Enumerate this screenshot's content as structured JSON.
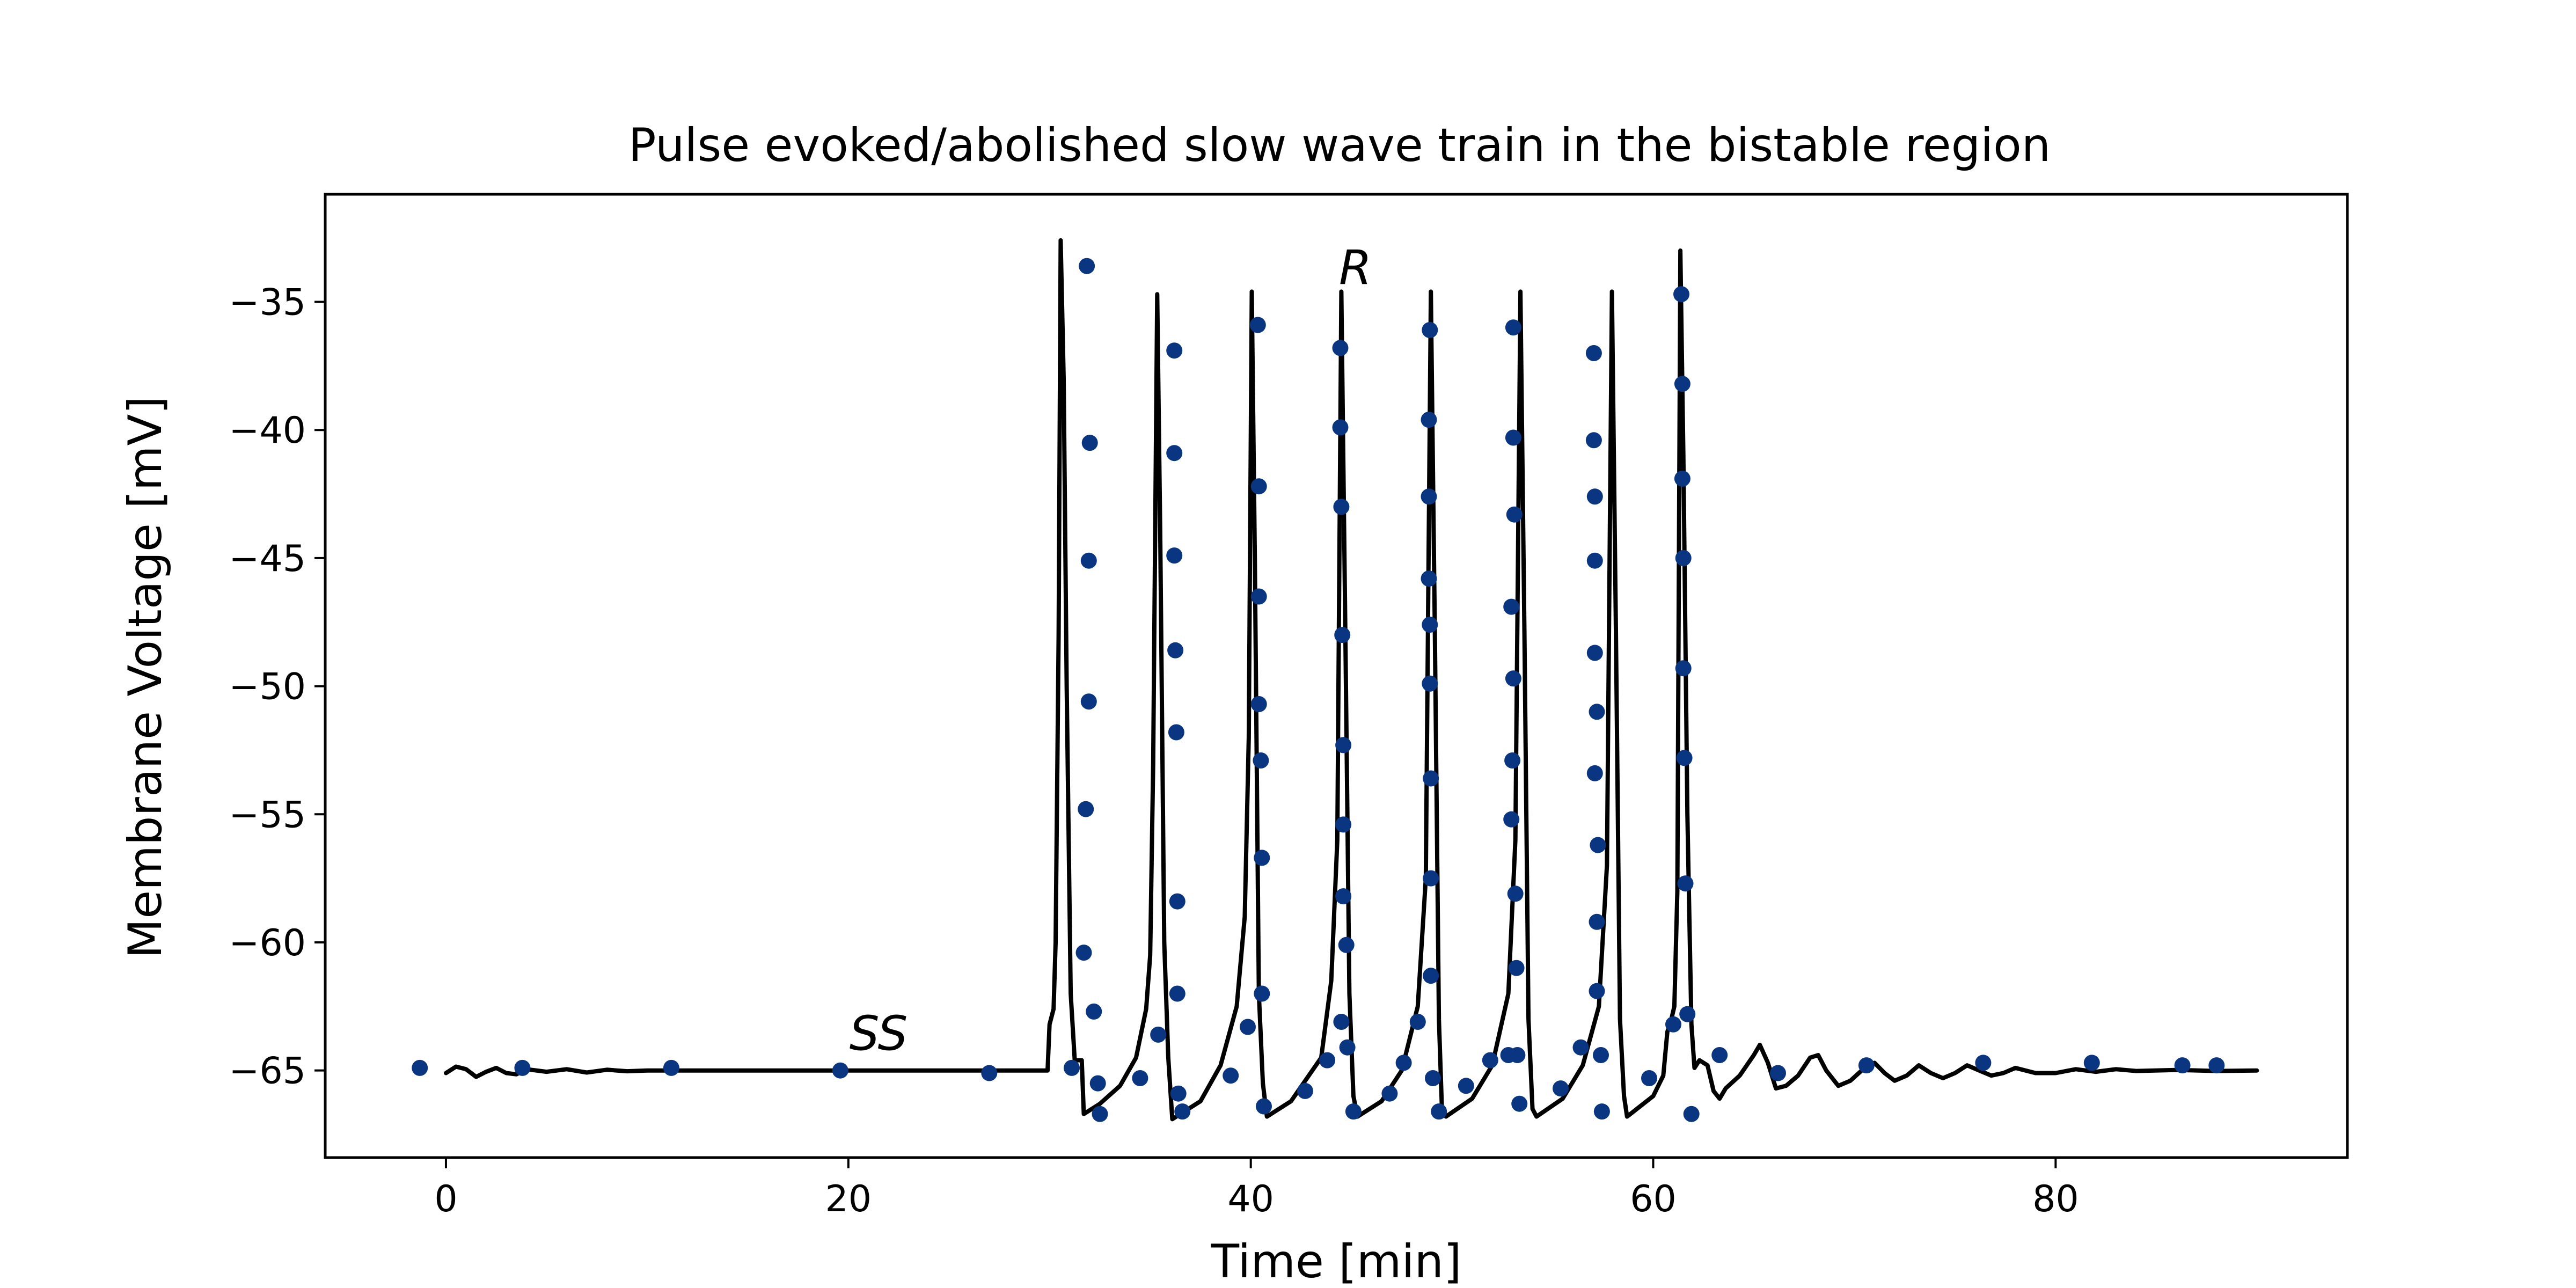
{
  "chart_data": {
    "type": "line",
    "title": "Pulse evoked/abolished slow wave train in the bistable region",
    "xlabel": "Time [min]",
    "ylabel": "Membrane Voltage [mV]",
    "xlim": [
      -6,
      94.5
    ],
    "ylim": [
      -68.4,
      -30.8
    ],
    "xticks": [
      0,
      20,
      40,
      60,
      80
    ],
    "yticks": [
      -35,
      -40,
      -45,
      -50,
      -55,
      -60,
      -65
    ],
    "xtick_labels": [
      "0",
      "20",
      "40",
      "60",
      "80"
    ],
    "ytick_labels": [
      "−35",
      "−40",
      "−45",
      "−50",
      "−55",
      "−60",
      "−65"
    ],
    "grid": false,
    "legend": "none",
    "annotations": [
      {
        "text": "SS",
        "x": 21.5,
        "y": -64.2
      },
      {
        "text": "R",
        "x": 45.2,
        "y": -34.3
      }
    ],
    "series": [
      {
        "kind": "line",
        "color": "#000000",
        "points": [
          [
            0,
            -65.1
          ],
          [
            0.5,
            -64.85
          ],
          [
            1.0,
            -64.95
          ],
          [
            1.5,
            -65.25
          ],
          [
            2.0,
            -65.05
          ],
          [
            2.5,
            -64.9
          ],
          [
            3.0,
            -65.1
          ],
          [
            3.5,
            -65.15
          ],
          [
            4.0,
            -64.95
          ],
          [
            5.0,
            -65.05
          ],
          [
            6.0,
            -64.95
          ],
          [
            7.0,
            -65.08
          ],
          [
            8.0,
            -64.97
          ],
          [
            9.0,
            -65.03
          ],
          [
            10.0,
            -65.0
          ],
          [
            12.0,
            -65.0
          ],
          [
            14.0,
            -65.0
          ],
          [
            29.9,
            -65.0
          ],
          [
            30.0,
            -63.2
          ],
          [
            30.2,
            -62.6
          ],
          [
            30.3,
            -60.0
          ],
          [
            30.45,
            -48.0
          ],
          [
            30.55,
            -32.6
          ],
          [
            30.7,
            -38.0
          ],
          [
            30.85,
            -50.0
          ],
          [
            31.05,
            -62.0
          ],
          [
            31.25,
            -64.6
          ],
          [
            31.6,
            -64.6
          ],
          [
            31.7,
            -66.7
          ],
          [
            32.5,
            -66.3
          ],
          [
            33.5,
            -65.6
          ],
          [
            34.3,
            -64.5
          ],
          [
            34.8,
            -62.6
          ],
          [
            35.0,
            -60.5
          ],
          [
            35.15,
            -53.0
          ],
          [
            35.35,
            -34.7
          ],
          [
            35.5,
            -44.0
          ],
          [
            35.7,
            -60.0
          ],
          [
            35.9,
            -64.5
          ],
          [
            36.1,
            -66.9
          ],
          [
            37.5,
            -66.2
          ],
          [
            38.5,
            -64.8
          ],
          [
            39.3,
            -62.5
          ],
          [
            39.7,
            -59.0
          ],
          [
            39.9,
            -52.0
          ],
          [
            40.05,
            -34.6
          ],
          [
            40.2,
            -45.0
          ],
          [
            40.4,
            -62.0
          ],
          [
            40.6,
            -65.5
          ],
          [
            40.8,
            -66.8
          ],
          [
            42.0,
            -66.2
          ],
          [
            43.5,
            -64.5
          ],
          [
            44.0,
            -61.5
          ],
          [
            44.3,
            -56.0
          ],
          [
            44.5,
            -34.6
          ],
          [
            44.7,
            -48.0
          ],
          [
            44.9,
            -62.0
          ],
          [
            45.1,
            -66.0
          ],
          [
            45.3,
            -66.8
          ],
          [
            46.5,
            -66.2
          ],
          [
            47.5,
            -65.0
          ],
          [
            48.3,
            -62.5
          ],
          [
            48.7,
            -57.5
          ],
          [
            48.95,
            -34.6
          ],
          [
            49.15,
            -48.0
          ],
          [
            49.35,
            -63.0
          ],
          [
            49.5,
            -66.5
          ],
          [
            49.7,
            -66.8
          ],
          [
            51.0,
            -66.1
          ],
          [
            52.0,
            -64.8
          ],
          [
            52.8,
            -62.0
          ],
          [
            53.15,
            -56.0
          ],
          [
            53.4,
            -34.6
          ],
          [
            53.6,
            -48.0
          ],
          [
            53.8,
            -63.0
          ],
          [
            54.0,
            -66.5
          ],
          [
            54.2,
            -66.8
          ],
          [
            55.5,
            -66.1
          ],
          [
            56.5,
            -64.8
          ],
          [
            57.3,
            -62.5
          ],
          [
            57.7,
            -57.0
          ],
          [
            57.95,
            -34.6
          ],
          [
            58.15,
            -48.0
          ],
          [
            58.35,
            -63.0
          ],
          [
            58.55,
            -66.0
          ],
          [
            58.7,
            -66.8
          ],
          [
            60.0,
            -66.0
          ],
          [
            60.5,
            -65.2
          ],
          [
            60.7,
            -63.5
          ],
          [
            60.9,
            -63.0
          ],
          [
            61.05,
            -62.5
          ],
          [
            61.2,
            -58.0
          ],
          [
            61.35,
            -33.0
          ],
          [
            61.5,
            -41.0
          ],
          [
            61.7,
            -55.0
          ],
          [
            61.9,
            -63.2
          ],
          [
            62.05,
            -64.9
          ],
          [
            62.3,
            -64.6
          ],
          [
            62.7,
            -64.8
          ],
          [
            63.0,
            -65.8
          ],
          [
            63.3,
            -66.1
          ],
          [
            63.6,
            -65.7
          ],
          [
            64.3,
            -65.2
          ],
          [
            65.0,
            -64.4
          ],
          [
            65.3,
            -64.0
          ],
          [
            65.7,
            -64.7
          ],
          [
            66.1,
            -65.7
          ],
          [
            66.6,
            -65.6
          ],
          [
            67.2,
            -65.2
          ],
          [
            67.8,
            -64.5
          ],
          [
            68.2,
            -64.4
          ],
          [
            68.6,
            -65.0
          ],
          [
            69.2,
            -65.6
          ],
          [
            69.8,
            -65.4
          ],
          [
            70.5,
            -64.9
          ],
          [
            71.0,
            -64.7
          ],
          [
            71.5,
            -65.1
          ],
          [
            72.0,
            -65.4
          ],
          [
            72.6,
            -65.2
          ],
          [
            73.2,
            -64.8
          ],
          [
            73.8,
            -65.1
          ],
          [
            74.4,
            -65.3
          ],
          [
            75.0,
            -65.1
          ],
          [
            75.6,
            -64.8
          ],
          [
            76.2,
            -65.0
          ],
          [
            76.8,
            -65.2
          ],
          [
            77.4,
            -65.1
          ],
          [
            78.0,
            -64.9
          ],
          [
            79.0,
            -65.1
          ],
          [
            80.0,
            -65.1
          ],
          [
            81.0,
            -64.95
          ],
          [
            82.0,
            -65.05
          ],
          [
            83.0,
            -64.95
          ],
          [
            84.0,
            -65.02
          ],
          [
            86.0,
            -64.98
          ],
          [
            88.0,
            -65.02
          ],
          [
            90.0,
            -65.0
          ]
        ]
      },
      {
        "kind": "scatter",
        "color": "#0a3580",
        "points": [
          [
            -1.3,
            -64.9
          ],
          [
            3.8,
            -64.9
          ],
          [
            11.2,
            -64.9
          ],
          [
            19.6,
            -65.0
          ],
          [
            27.0,
            -65.1
          ],
          [
            31.1,
            -64.9
          ],
          [
            31.7,
            -60.4
          ],
          [
            31.8,
            -54.8
          ],
          [
            31.95,
            -45.1
          ],
          [
            31.95,
            -50.6
          ],
          [
            32.0,
            -40.5
          ],
          [
            32.2,
            -62.7
          ],
          [
            32.4,
            -65.5
          ],
          [
            32.5,
            -66.7
          ],
          [
            31.85,
            -33.6
          ],
          [
            34.5,
            -65.3
          ],
          [
            35.4,
            -63.6
          ],
          [
            36.2,
            -36.9
          ],
          [
            36.2,
            -40.9
          ],
          [
            36.2,
            -44.9
          ],
          [
            36.25,
            -48.6
          ],
          [
            36.3,
            -51.8
          ],
          [
            36.35,
            -58.4
          ],
          [
            36.35,
            -62.0
          ],
          [
            36.4,
            -65.9
          ],
          [
            36.6,
            -66.6
          ],
          [
            39.0,
            -65.2
          ],
          [
            39.85,
            -63.3
          ],
          [
            40.35,
            -35.9
          ],
          [
            40.4,
            -42.2
          ],
          [
            40.4,
            -46.5
          ],
          [
            40.4,
            -50.7
          ],
          [
            40.5,
            -52.9
          ],
          [
            40.55,
            -56.7
          ],
          [
            40.55,
            -62.0
          ],
          [
            40.65,
            -66.4
          ],
          [
            42.7,
            -65.8
          ],
          [
            43.8,
            -64.6
          ],
          [
            44.5,
            -63.1
          ],
          [
            44.45,
            -36.8
          ],
          [
            44.45,
            -39.9
          ],
          [
            44.5,
            -43.0
          ],
          [
            44.55,
            -48.0
          ],
          [
            44.6,
            -52.3
          ],
          [
            44.6,
            -55.4
          ],
          [
            44.6,
            -58.2
          ],
          [
            44.75,
            -60.1
          ],
          [
            44.8,
            -64.1
          ],
          [
            45.1,
            -66.6
          ],
          [
            46.9,
            -65.9
          ],
          [
            47.6,
            -64.7
          ],
          [
            48.3,
            -63.1
          ],
          [
            48.9,
            -36.1
          ],
          [
            48.85,
            -39.6
          ],
          [
            48.85,
            -42.6
          ],
          [
            48.85,
            -45.8
          ],
          [
            48.9,
            -47.6
          ],
          [
            48.9,
            -49.9
          ],
          [
            48.95,
            -53.6
          ],
          [
            48.95,
            -57.5
          ],
          [
            48.95,
            -61.3
          ],
          [
            49.05,
            -65.3
          ],
          [
            49.35,
            -66.6
          ],
          [
            50.7,
            -65.6
          ],
          [
            51.9,
            -64.6
          ],
          [
            52.8,
            -64.4
          ],
          [
            53.05,
            -36.0
          ],
          [
            53.05,
            -40.3
          ],
          [
            53.1,
            -43.3
          ],
          [
            52.95,
            -46.9
          ],
          [
            53.05,
            -49.7
          ],
          [
            53.0,
            -52.9
          ],
          [
            52.95,
            -55.2
          ],
          [
            53.15,
            -58.1
          ],
          [
            53.2,
            -61.0
          ],
          [
            53.25,
            -64.4
          ],
          [
            53.35,
            -66.3
          ],
          [
            55.4,
            -65.7
          ],
          [
            56.4,
            -64.1
          ],
          [
            57.05,
            -37.0
          ],
          [
            57.05,
            -40.4
          ],
          [
            57.1,
            -42.6
          ],
          [
            57.1,
            -45.1
          ],
          [
            57.1,
            -48.7
          ],
          [
            57.2,
            -51.0
          ],
          [
            57.1,
            -53.4
          ],
          [
            57.25,
            -56.2
          ],
          [
            57.2,
            -59.2
          ],
          [
            57.2,
            -61.9
          ],
          [
            57.4,
            -64.4
          ],
          [
            57.45,
            -66.6
          ],
          [
            59.8,
            -65.3
          ],
          [
            61.0,
            -63.2
          ],
          [
            61.4,
            -34.7
          ],
          [
            61.45,
            -38.2
          ],
          [
            61.45,
            -41.9
          ],
          [
            61.5,
            -45.0
          ],
          [
            61.5,
            -49.3
          ],
          [
            61.55,
            -52.8
          ],
          [
            61.6,
            -57.7
          ],
          [
            61.7,
            -62.8
          ],
          [
            61.9,
            -66.7
          ],
          [
            63.3,
            -64.4
          ],
          [
            66.2,
            -65.1
          ],
          [
            70.6,
            -64.8
          ],
          [
            76.4,
            -64.7
          ],
          [
            81.8,
            -64.7
          ],
          [
            86.3,
            -64.8
          ],
          [
            88.0,
            -64.8
          ]
        ]
      }
    ]
  }
}
